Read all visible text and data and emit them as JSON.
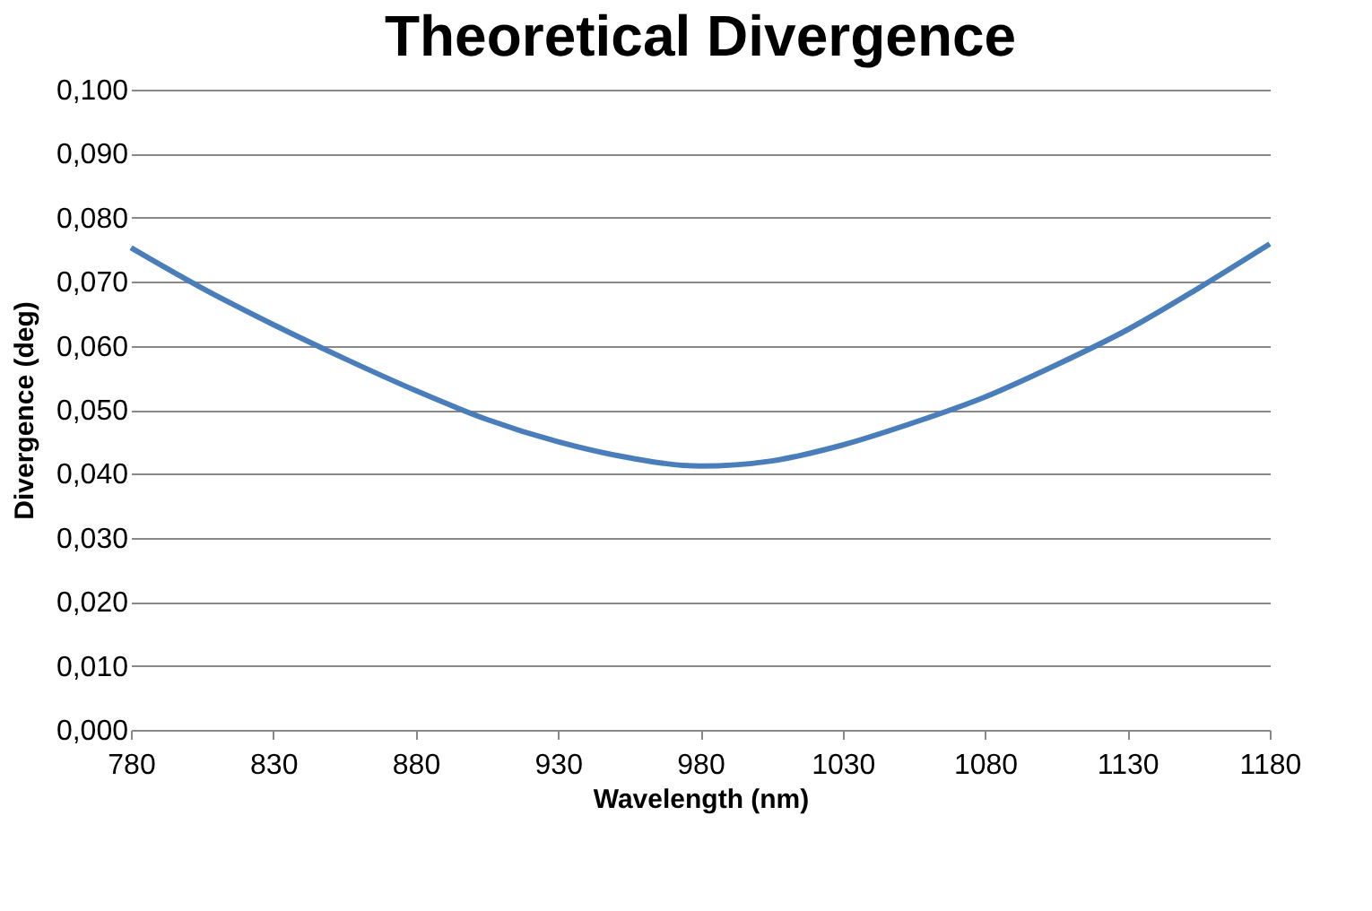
{
  "chart_data": {
    "type": "line",
    "title": "Theoretical Divergence",
    "xlabel": "Wavelength (nm)",
    "ylabel": "Divergence (deg)",
    "x": [
      780,
      805,
      830,
      855,
      880,
      905,
      930,
      955,
      980,
      1005,
      1030,
      1055,
      1080,
      1105,
      1130,
      1155,
      1180
    ],
    "series": [
      {
        "color": "#4a7ebb",
        "values": [
          0.0753,
          0.069,
          0.0633,
          0.058,
          0.053,
          0.0485,
          0.045,
          0.0425,
          0.0412,
          0.042,
          0.0445,
          0.048,
          0.052,
          0.057,
          0.0625,
          0.069,
          0.0759
        ]
      }
    ],
    "xlim": [
      780,
      1180
    ],
    "xticks": [
      780,
      830,
      880,
      930,
      980,
      1030,
      1080,
      1130,
      1180
    ],
    "ylim": [
      0,
      0.1
    ],
    "yticks": [
      {
        "value": 0,
        "label": "0,000"
      },
      {
        "value": 0.01,
        "label": "0,010"
      },
      {
        "value": 0.02,
        "label": "0,020"
      },
      {
        "value": 0.03,
        "label": "0,030"
      },
      {
        "value": 0.04,
        "label": "0,040"
      },
      {
        "value": 0.05,
        "label": "0,050"
      },
      {
        "value": 0.06,
        "label": "0,060"
      },
      {
        "value": 0.07,
        "label": "0,070"
      },
      {
        "value": 0.08,
        "label": "0,080"
      },
      {
        "value": 0.09,
        "label": "0,090"
      },
      {
        "value": 0.1,
        "label": "0,100"
      }
    ],
    "grid": "y",
    "marker": "none",
    "line_style": "solid"
  }
}
